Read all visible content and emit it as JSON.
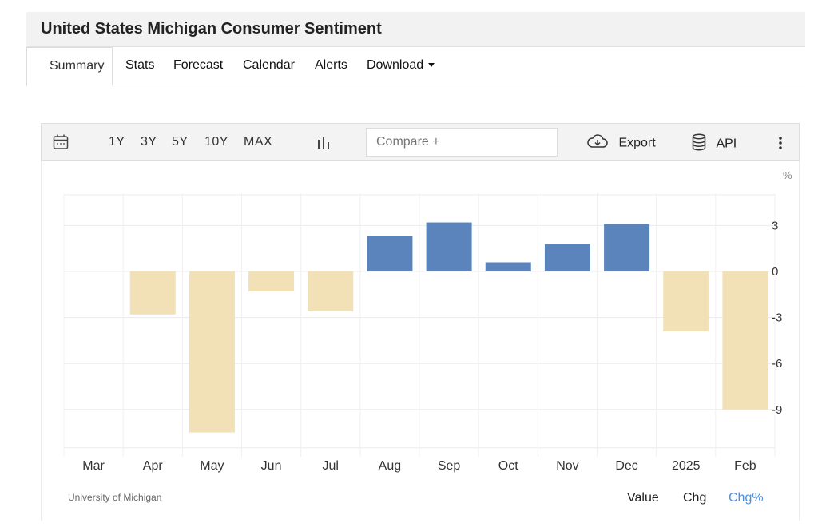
{
  "header": {
    "title": "United States Michigan Consumer Sentiment"
  },
  "tabs": [
    {
      "label": "Summary"
    },
    {
      "label": "Stats"
    },
    {
      "label": "Forecast"
    },
    {
      "label": "Calendar"
    },
    {
      "label": "Alerts"
    },
    {
      "label": "Download"
    }
  ],
  "toolbar": {
    "ranges": [
      "1Y",
      "3Y",
      "5Y",
      "10Y",
      "MAX"
    ],
    "compare_placeholder": "Compare +",
    "export_label": "Export",
    "api_label": "API"
  },
  "footer": {
    "source": "University of Michigan",
    "modes": [
      "Value",
      "Chg",
      "Chg%"
    ],
    "active_mode": "Chg%"
  },
  "colors": {
    "positive": "#5b84bd",
    "negative": "#f2e0b6",
    "active_mode": "#4a90e2"
  },
  "chart_data": {
    "type": "bar",
    "categories": [
      "Mar",
      "Apr",
      "May",
      "Jun",
      "Jul",
      "Aug",
      "Sep",
      "Oct",
      "Nov",
      "Dec",
      "2025",
      "Feb"
    ],
    "values": [
      0,
      -2.8,
      -10.5,
      -1.3,
      -2.6,
      2.3,
      3.2,
      0.6,
      1.8,
      3.1,
      -3.9,
      -9.0
    ],
    "unit_label": "%",
    "yticks": [
      3,
      0,
      -3,
      -6,
      -9
    ],
    "ylim": [
      -11.5,
      5
    ],
    "grid": true,
    "ylabel_position": "right"
  }
}
